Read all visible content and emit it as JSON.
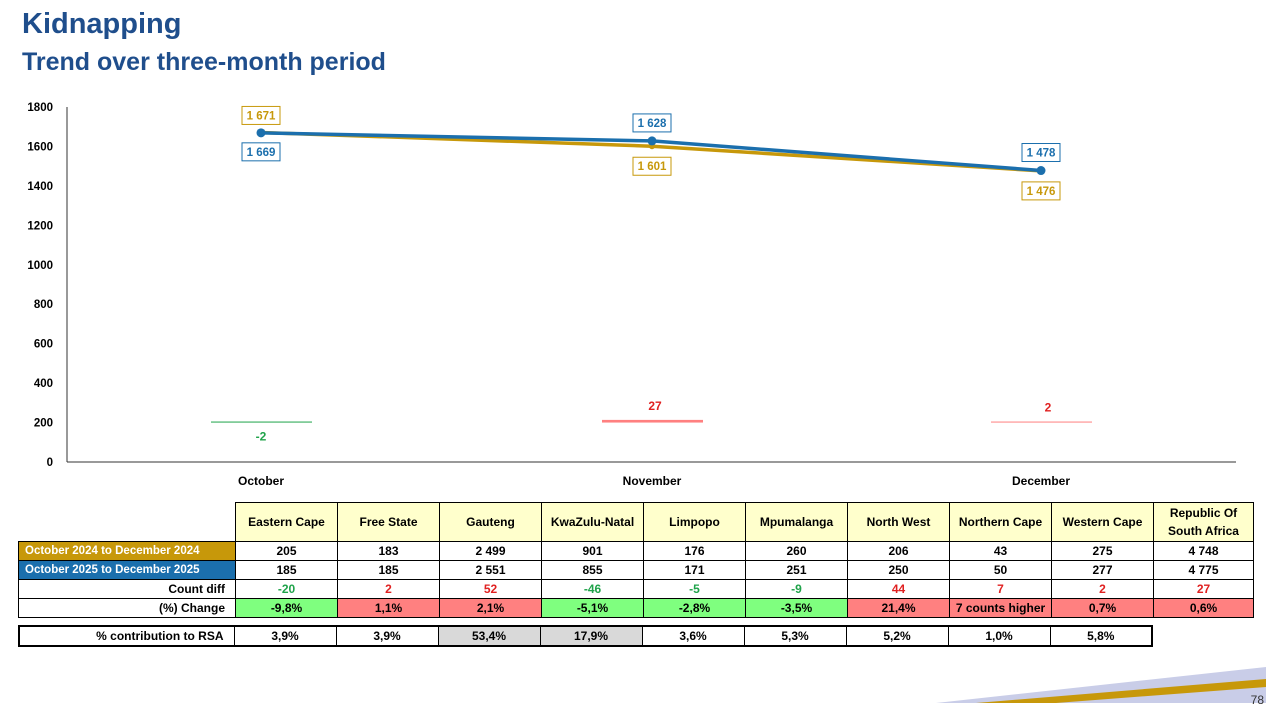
{
  "page": {
    "title": "Kidnapping",
    "subtitle": "Trend over three-month period",
    "page_number": "78"
  },
  "colors": {
    "title": "#1f4e8c",
    "series_2024": "#c7980a",
    "series_2025": "#1b6fad",
    "decrease": "#1fa34a",
    "increase": "#e02020",
    "diff_bar": "#ff8080"
  },
  "chart_data": {
    "type": "line",
    "categories": [
      "October",
      "November",
      "December"
    ],
    "ylim": [
      0,
      1800
    ],
    "yticks": [
      "0",
      "200",
      "400",
      "600",
      "800",
      "1000",
      "1200",
      "1400",
      "1600",
      "1800"
    ],
    "grid": false,
    "series": [
      {
        "period": "2024",
        "values": [
          1671,
          1601,
          1476
        ],
        "labels": [
          "1 671",
          "1 601",
          "1 476"
        ]
      },
      {
        "period": "2025",
        "values": [
          1669,
          1628,
          1478
        ],
        "labels": [
          "1 669",
          "1 628",
          "1 478"
        ]
      }
    ],
    "difference": {
      "values": [
        -2,
        27,
        2
      ],
      "labels": [
        "-2",
        "27",
        "2"
      ]
    }
  },
  "table": {
    "headers": [
      "Eastern Cape",
      "Free State",
      "Gauteng",
      "KwaZulu-Natal",
      "Limpopo",
      "Mpumalanga",
      "North West",
      "Northern Cape",
      "Western Cape",
      "Republic Of South Africa"
    ],
    "rows": [
      {
        "label": "October 2024 to December 2024",
        "style": "a",
        "cells": [
          "205",
          "183",
          "2 499",
          "901",
          "176",
          "260",
          "206",
          "43",
          "275",
          "4 748"
        ]
      },
      {
        "label": "October 2025 to December 2025",
        "style": "b",
        "cells": [
          "185",
          "185",
          "2 551",
          "855",
          "171",
          "251",
          "250",
          "50",
          "277",
          "4 775"
        ]
      },
      {
        "label": "Count diff",
        "style": "r",
        "cells": [
          "-20",
          "2",
          "52",
          "-46",
          "-5",
          "-9",
          "44",
          "7",
          "2",
          "27"
        ],
        "classes": [
          "neg",
          "pos",
          "pos",
          "neg",
          "neg",
          "neg",
          "pos",
          "pos",
          "pos",
          "pos"
        ]
      },
      {
        "label": "(%) Change",
        "style": "r",
        "cells": [
          "-9,8%",
          "1,1%",
          "2,1%",
          "-5,1%",
          "-2,8%",
          "-3,5%",
          "21,4%",
          "7 counts higher",
          "0,7%",
          "0,6%"
        ],
        "classes": [
          "bg-green",
          "bg-red",
          "bg-red",
          "bg-green",
          "bg-green",
          "bg-green",
          "bg-red",
          "bg-red",
          "bg-red",
          "bg-red"
        ]
      }
    ]
  },
  "contribution": {
    "label": "% contribution to RSA",
    "cells": [
      "3,9%",
      "3,9%",
      "53,4%",
      "17,9%",
      "3,6%",
      "5,3%",
      "5,2%",
      "1,0%",
      "5,8%"
    ],
    "classes": [
      "",
      "",
      "bg-grey",
      "bg-grey",
      "",
      "",
      "",
      "",
      ""
    ]
  }
}
